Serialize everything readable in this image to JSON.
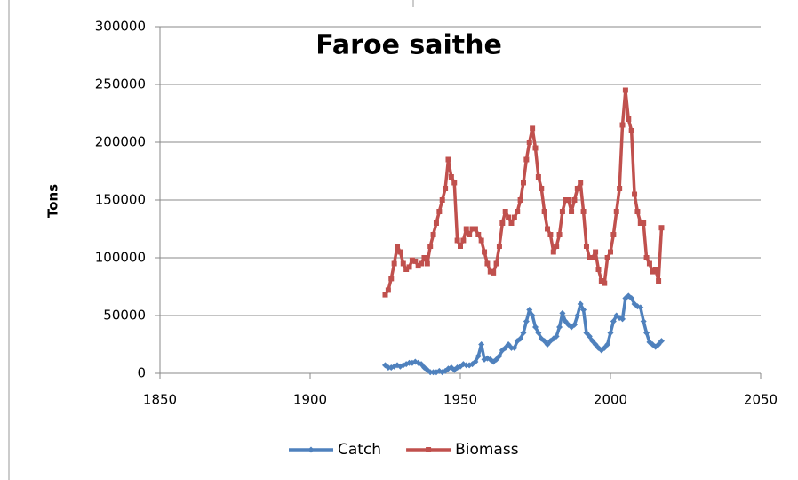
{
  "chart_data": {
    "type": "line",
    "title": "Faroe saithe",
    "y_label": "Tons",
    "x": [
      1925,
      1926,
      1927,
      1928,
      1929,
      1930,
      1931,
      1932,
      1933,
      1934,
      1935,
      1936,
      1937,
      1938,
      1939,
      1940,
      1941,
      1942,
      1943,
      1944,
      1945,
      1946,
      1947,
      1948,
      1949,
      1950,
      1951,
      1952,
      1953,
      1954,
      1955,
      1956,
      1957,
      1958,
      1959,
      1960,
      1961,
      1962,
      1963,
      1964,
      1965,
      1966,
      1967,
      1968,
      1969,
      1970,
      1971,
      1972,
      1973,
      1974,
      1975,
      1976,
      1977,
      1978,
      1979,
      1980,
      1981,
      1982,
      1983,
      1984,
      1985,
      1986,
      1987,
      1988,
      1989,
      1990,
      1991,
      1992,
      1993,
      1994,
      1995,
      1996,
      1997,
      1998,
      1999,
      2000,
      2001,
      2002,
      2003,
      2004,
      2005,
      2006,
      2007,
      2008,
      2009,
      2010,
      2011,
      2012,
      2013,
      2014,
      2015,
      2016,
      2017
    ],
    "series": [
      {
        "name": "Catch",
        "color": "#4f81bd",
        "marker": "diamond",
        "values": [
          7000,
          5000,
          5000,
          6000,
          7000,
          6000,
          7000,
          8000,
          9000,
          9000,
          10000,
          9000,
          8000,
          5000,
          3000,
          1000,
          1000,
          1000,
          2000,
          1000,
          2000,
          4000,
          5000,
          3000,
          5000,
          6000,
          8000,
          7000,
          7000,
          8000,
          10000,
          15000,
          25000,
          12000,
          13000,
          12000,
          10000,
          12000,
          15000,
          20000,
          22000,
          25000,
          22000,
          22000,
          28000,
          30000,
          35000,
          45000,
          55000,
          50000,
          40000,
          35000,
          30000,
          28000,
          25000,
          28000,
          30000,
          32000,
          40000,
          52000,
          45000,
          42000,
          40000,
          42000,
          50000,
          60000,
          55000,
          35000,
          32000,
          28000,
          25000,
          22000,
          20000,
          22000,
          25000,
          35000,
          45000,
          50000,
          48000,
          47000,
          65000,
          67000,
          65000,
          60000,
          58000,
          57000,
          45000,
          35000,
          27000,
          25000,
          23000,
          25000,
          28000
        ]
      },
      {
        "name": "Biomass",
        "color": "#c0504d",
        "marker": "square",
        "values": [
          68000,
          72000,
          82000,
          95000,
          110000,
          105000,
          95000,
          90000,
          92000,
          98000,
          97000,
          93000,
          95000,
          100000,
          95000,
          110000,
          120000,
          130000,
          140000,
          150000,
          160000,
          185000,
          170000,
          165000,
          115000,
          110000,
          115000,
          125000,
          120000,
          125000,
          125000,
          120000,
          115000,
          105000,
          95000,
          88000,
          87000,
          95000,
          110000,
          130000,
          140000,
          135000,
          130000,
          135000,
          140000,
          150000,
          165000,
          185000,
          200000,
          212000,
          195000,
          170000,
          160000,
          140000,
          125000,
          120000,
          105000,
          110000,
          120000,
          140000,
          150000,
          150000,
          140000,
          150000,
          160000,
          165000,
          140000,
          110000,
          100000,
          100000,
          105000,
          90000,
          80000,
          78000,
          100000,
          105000,
          120000,
          140000,
          160000,
          215000,
          245000,
          220000,
          210000,
          155000,
          140000,
          130000,
          130000,
          100000,
          95000,
          88000,
          90000,
          80000,
          126000
        ]
      }
    ],
    "xlim": [
      1850,
      2050
    ],
    "xticks": [
      1850,
      1900,
      1950,
      2000,
      2050
    ],
    "ylim": [
      0,
      300000
    ],
    "yticks": [
      0,
      50000,
      100000,
      150000,
      200000,
      250000,
      300000
    ],
    "grid": true,
    "legend": "bottom"
  }
}
